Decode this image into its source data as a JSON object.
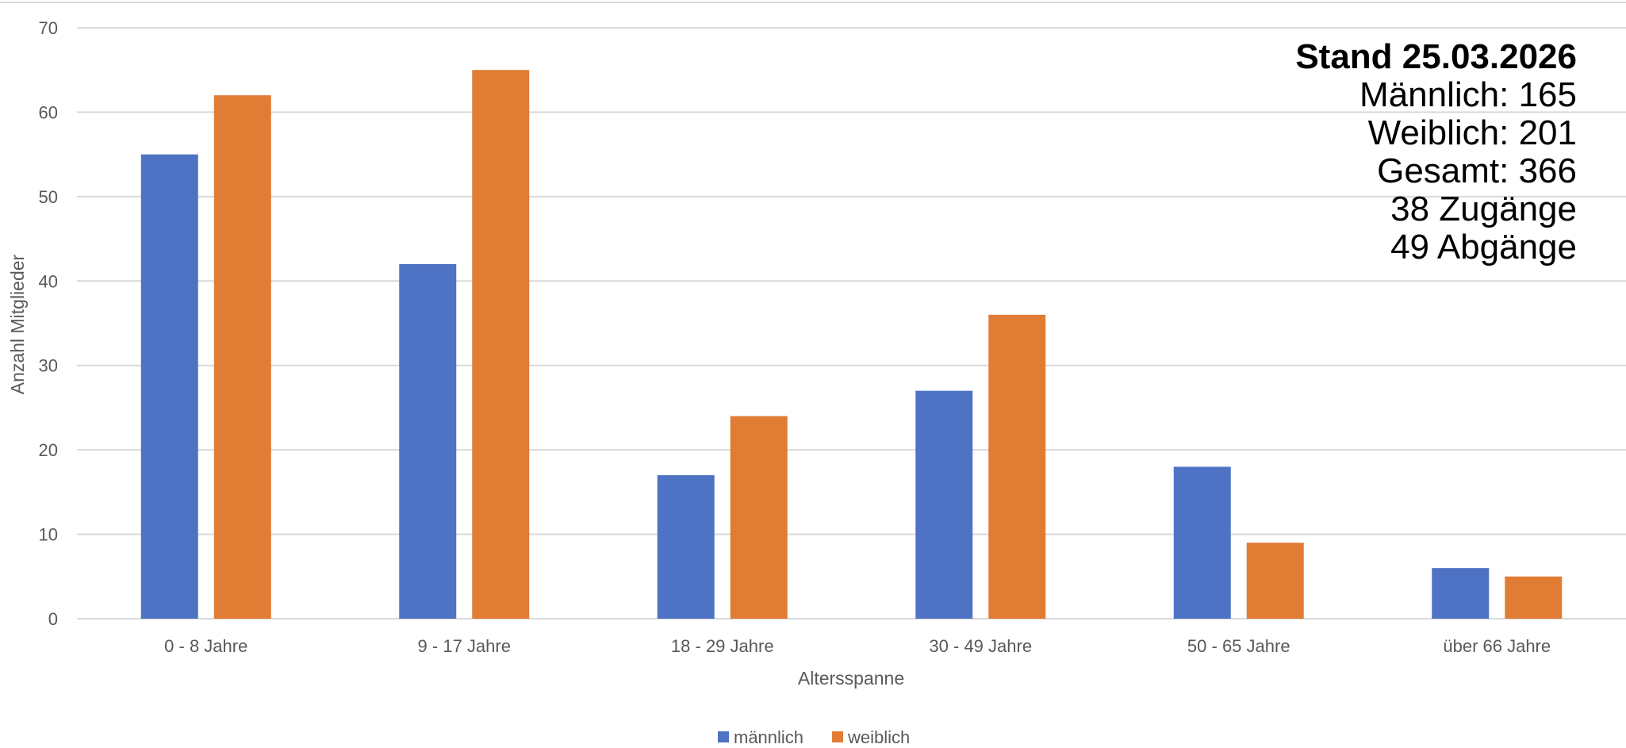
{
  "chart_data": {
    "type": "bar",
    "categories": [
      "0 - 8 Jahre",
      "9 - 17 Jahre",
      "18 - 29 Jahre",
      "30 - 49 Jahre",
      "50 - 65 Jahre",
      "über 66 Jahre"
    ],
    "series": [
      {
        "name": "männlich",
        "color": "#4E73C4",
        "values": [
          55,
          42,
          17,
          27,
          18,
          6
        ]
      },
      {
        "name": "weiblich",
        "color": "#E17C35",
        "values": [
          62,
          65,
          24,
          36,
          9,
          5
        ]
      }
    ],
    "xlabel": "Altersspanne",
    "ylabel": "Anzahl Mitglieder",
    "ylim": [
      0,
      70
    ],
    "yticks": [
      0,
      10,
      20,
      30,
      40,
      50,
      60,
      70
    ],
    "grid": true,
    "legend": "bottom",
    "annotation": {
      "title": "Stand 25.03.2026",
      "lines": [
        "Männlich: 165",
        "Weiblich: 201",
        "Gesamt: 366",
        "38 Zugänge",
        "49 Abgänge"
      ]
    }
  }
}
